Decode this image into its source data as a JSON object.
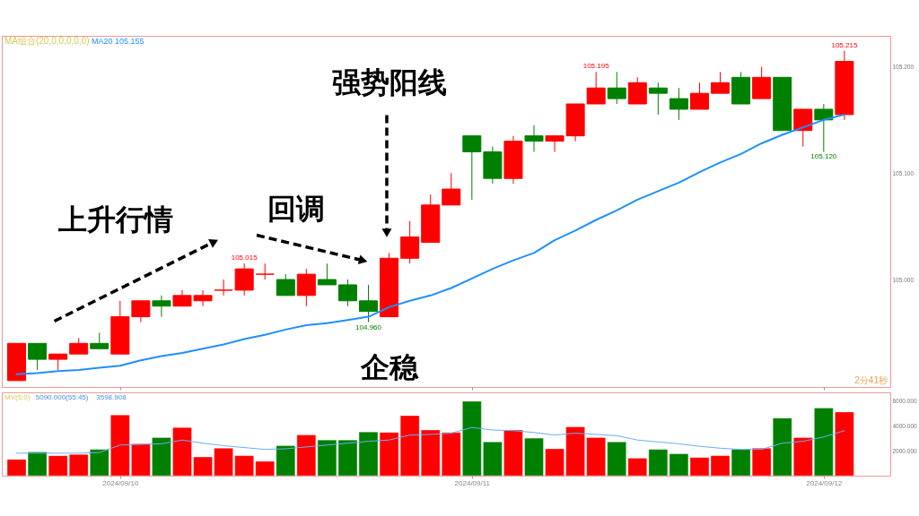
{
  "chart_data": [
    {
      "type": "candlestick",
      "categories": [
        null,
        null,
        null,
        null,
        null,
        "2024/09/10",
        null,
        null,
        null,
        null,
        null,
        null,
        null,
        null,
        null,
        null,
        null,
        null,
        null,
        null,
        null,
        null,
        "2024/09/11",
        null,
        null,
        null,
        null,
        null,
        null,
        null,
        null,
        null,
        null,
        null,
        null,
        null,
        null,
        null,
        null,
        "2024/09/12",
        null
      ],
      "ohlc": [
        [
          104.905,
          104.94,
          104.905,
          104.94
        ],
        [
          104.94,
          104.94,
          104.915,
          104.925
        ],
        [
          104.925,
          104.93,
          104.915,
          104.93
        ],
        [
          104.93,
          104.945,
          104.93,
          104.94
        ],
        [
          104.94,
          104.95,
          104.935,
          104.935
        ],
        [
          104.93,
          104.98,
          104.93,
          104.965
        ],
        [
          104.965,
          104.98,
          104.96,
          104.98
        ],
        [
          104.98,
          104.985,
          104.965,
          104.975
        ],
        [
          104.975,
          104.99,
          104.975,
          104.985
        ],
        [
          104.98,
          104.99,
          104.975,
          104.985
        ],
        [
          104.99,
          105.0,
          104.985,
          104.99
        ],
        [
          104.99,
          105.015,
          104.985,
          105.01
        ],
        [
          105.005,
          105.015,
          105.0,
          105.005
        ],
        [
          105.0,
          105.005,
          104.985,
          104.985
        ],
        [
          104.985,
          105.01,
          104.975,
          105.005
        ],
        [
          105.0,
          105.015,
          104.995,
          104.995
        ],
        [
          104.995,
          105.0,
          104.975,
          104.98
        ],
        [
          104.98,
          104.995,
          104.96,
          104.97
        ],
        [
          104.965,
          105.025,
          104.965,
          105.02
        ],
        [
          105.02,
          105.055,
          105.015,
          105.04
        ],
        [
          105.035,
          105.08,
          105.035,
          105.07
        ],
        [
          105.07,
          105.1,
          105.07,
          105.085
        ],
        [
          105.135,
          105.135,
          105.075,
          105.12
        ],
        [
          105.12,
          105.125,
          105.09,
          105.095
        ],
        [
          105.095,
          105.135,
          105.09,
          105.13
        ],
        [
          105.135,
          105.145,
          105.12,
          105.13
        ],
        [
          105.13,
          105.135,
          105.12,
          105.135
        ],
        [
          105.135,
          105.165,
          105.13,
          105.165
        ],
        [
          105.165,
          105.195,
          105.165,
          105.18
        ],
        [
          105.18,
          105.195,
          105.165,
          105.17
        ],
        [
          105.165,
          105.19,
          105.165,
          105.185
        ],
        [
          105.18,
          105.185,
          105.155,
          105.175
        ],
        [
          105.17,
          105.18,
          105.15,
          105.16
        ],
        [
          105.16,
          105.185,
          105.16,
          105.175
        ],
        [
          105.175,
          105.195,
          105.175,
          105.185
        ],
        [
          105.19,
          105.195,
          105.165,
          105.165
        ],
        [
          105.17,
          105.2,
          105.17,
          105.19
        ],
        [
          105.19,
          105.19,
          105.14,
          105.14
        ],
        [
          105.14,
          105.16,
          105.125,
          105.16
        ],
        [
          105.16,
          105.165,
          105.12,
          105.15
        ],
        [
          105.155,
          105.215,
          105.15,
          105.205
        ]
      ],
      "colors": [
        "#ff0000",
        "#008000",
        "#ff0000",
        "#ff0000",
        "#008000",
        "#ff0000",
        "#ff0000",
        "#008000",
        "#ff0000",
        "#ff0000",
        "#ff0000",
        "#ff0000",
        "#ff0000",
        "#008000",
        "#ff0000",
        "#008000",
        "#008000",
        "#008000",
        "#ff0000",
        "#ff0000",
        "#ff0000",
        "#ff0000",
        "#008000",
        "#008000",
        "#ff0000",
        "#008000",
        "#ff0000",
        "#ff0000",
        "#ff0000",
        "#008000",
        "#ff0000",
        "#008000",
        "#008000",
        "#ff0000",
        "#ff0000",
        "#008000",
        "#ff0000",
        "#008000",
        "#ff0000",
        "#008000",
        "#ff0000"
      ],
      "series": [
        {
          "name": "MA20 105.155",
          "type": "line",
          "color": "#1e90ff",
          "values": [
            104.911,
            104.912,
            104.914,
            104.915,
            104.917,
            104.919,
            104.924,
            104.928,
            104.931,
            104.935,
            104.939,
            104.944,
            104.948,
            104.953,
            104.957,
            104.959,
            104.962,
            104.965,
            104.974,
            104.98,
            104.985,
            104.992,
            105.001,
            105.01,
            105.018,
            105.025,
            105.037,
            105.046,
            105.056,
            105.065,
            105.075,
            105.083,
            105.091,
            105.101,
            105.11,
            105.118,
            105.128,
            105.136,
            105.143,
            105.15,
            105.155
          ]
        }
      ],
      "ylim": [
        104.899,
        105.229
      ],
      "yticks": [
        {
          "value": 105.0,
          "label": "105.000"
        },
        {
          "value": 105.1,
          "label": "105.100"
        },
        {
          "value": 105.2,
          "label": "105.200"
        }
      ],
      "tick_labels": "y",
      "grid": false,
      "annotations": [
        "MA组合(20,0,0,0,0,0)",
        "上升行情",
        "回调",
        "强势阳线",
        "企稳",
        "2分41秒",
        {
          "text": "105.015",
          "y": 105.015
        },
        {
          "text": "104.960",
          "y": 104.96
        },
        {
          "text": "105.195",
          "y": 105.195
        },
        {
          "text": "105.215",
          "y": 105.215
        },
        {
          "text": "105.120",
          "y": 105.12
        }
      ]
    },
    {
      "type": "bar",
      "categories": [
        null,
        null,
        null,
        null,
        null,
        "2024/09/10",
        null,
        null,
        null,
        null,
        null,
        null,
        null,
        null,
        null,
        null,
        null,
        null,
        null,
        null,
        null,
        null,
        "2024/09/11",
        null,
        null,
        null,
        null,
        null,
        null,
        null,
        null,
        null,
        null,
        null,
        null,
        null,
        null,
        null,
        null,
        "2024/09/12",
        null
      ],
      "series": [
        {
          "type": "bar",
          "colors": [
            "#ff0000",
            "#008000",
            "#ff0000",
            "#ff0000",
            "#008000",
            "#ff0000",
            "#ff0000",
            "#008000",
            "#ff0000",
            "#ff0000",
            "#ff0000",
            "#ff0000",
            "#ff0000",
            "#008000",
            "#ff0000",
            "#008000",
            "#008000",
            "#008000",
            "#ff0000",
            "#ff0000",
            "#ff0000",
            "#ff0000",
            "#008000",
            "#008000",
            "#ff0000",
            "#008000",
            "#ff0000",
            "#ff0000",
            "#ff0000",
            "#008000",
            "#ff0000",
            "#008000",
            "#008000",
            "#ff0000",
            "#ff0000",
            "#008000",
            "#ff0000",
            "#008000",
            "#ff0000",
            "#008000",
            "#ff0000"
          ],
          "values": [
            1300,
            1900,
            1600,
            1700,
            2100,
            4850,
            2550,
            3050,
            3850,
            1500,
            2200,
            1600,
            1150,
            2400,
            3250,
            2850,
            2850,
            3500,
            3450,
            4800,
            3650,
            3450,
            5950,
            2700,
            3650,
            3000,
            2150,
            3900,
            3050,
            2700,
            1400,
            2100,
            1750,
            1450,
            1600,
            2100,
            2200,
            4600,
            3050,
            5400,
            5090
          ]
        },
        {
          "type": "line",
          "color": "#6ab0f0",
          "values": [
            1800,
            1800,
            1800,
            1800,
            1850,
            2450,
            2500,
            2550,
            2850,
            2600,
            2400,
            2250,
            2100,
            2150,
            2300,
            2450,
            2600,
            2750,
            2850,
            3250,
            3300,
            3400,
            3850,
            3650,
            3600,
            3450,
            3250,
            3400,
            3300,
            3200,
            2850,
            2700,
            2550,
            2350,
            2200,
            2100,
            2100,
            2600,
            2750,
            3100,
            3598.908
          ]
        }
      ],
      "ylim": [
        0,
        6660
      ],
      "yticks": [
        {
          "value": 2000,
          "label": "2000.000"
        },
        {
          "value": 4000,
          "label": "4000.000"
        },
        {
          "value": 6000,
          "label": "6000.000"
        }
      ],
      "grid": false,
      "annotations": [
        "MV(5,0)",
        "5090.000(55:45)",
        "3598.908"
      ]
    }
  ]
}
